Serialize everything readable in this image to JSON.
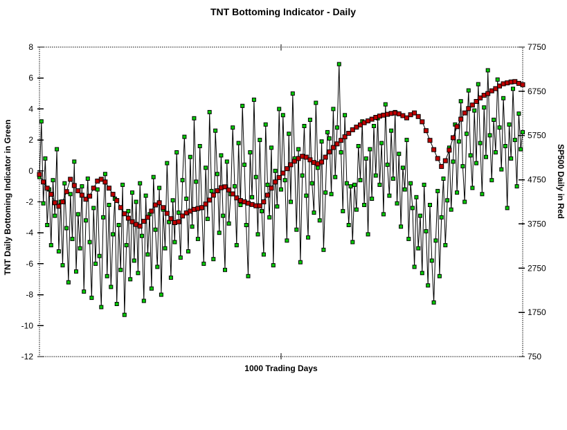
{
  "page": {
    "background": "#ffffff"
  },
  "chart_data": {
    "type": "line",
    "title": "TNT Bottoming Indicator - Daily",
    "xlabel": "1000 Trading Days",
    "grid": false,
    "frame_style": "dotted",
    "x_range": [
      0,
      1000
    ],
    "left_axis": {
      "label": "TNT Daily Bottoming Indicator in Green",
      "min": -12,
      "max": 8,
      "ticks": [
        8,
        6,
        4,
        2,
        0,
        -2,
        -4,
        -6,
        -8,
        -10,
        -12
      ],
      "tick_labels": [
        "8",
        "6",
        "4",
        "2",
        "0",
        "-2",
        "-4",
        "-6",
        "-8",
        "-10",
        "-12"
      ]
    },
    "right_axis": {
      "label": "SP500 Daily in Red",
      "min": 750,
      "max": 7750,
      "ticks": [
        7750,
        6750,
        5750,
        4750,
        3750,
        2750,
        1750,
        750
      ],
      "tick_labels": [
        "7750",
        "6750",
        "5750",
        "4750",
        "3750",
        "2750",
        "1750",
        "750"
      ]
    },
    "series": [
      {
        "name": "TNT Daily Bottoming Indicator",
        "axis": "left",
        "color": "#00cc00",
        "line_color": "#000000",
        "marker": "square",
        "marker_size": 5,
        "x_start": 0,
        "x_step": 4,
        "values": [
          -0.4,
          3.2,
          -2.1,
          0.8,
          -3.5,
          -1.2,
          -4.8,
          -0.6,
          -2.9,
          1.4,
          -5.2,
          -2.0,
          -6.1,
          -0.8,
          -3.7,
          -7.2,
          -1.5,
          -4.4,
          0.6,
          -6.5,
          -2.8,
          -5.0,
          -1.0,
          -7.8,
          -3.2,
          -0.5,
          -4.6,
          -8.2,
          -2.4,
          -6.0,
          -1.2,
          -5.5,
          -8.8,
          -3.0,
          -0.2,
          -6.8,
          -2.2,
          -7.5,
          -4.1,
          -1.8,
          -8.6,
          -3.5,
          -6.4,
          -0.9,
          -9.3,
          -4.8,
          -2.6,
          -7.0,
          -1.4,
          -5.8,
          -2.0,
          -6.6,
          -0.8,
          -4.2,
          -8.4,
          -1.6,
          -5.4,
          -2.8,
          -7.6,
          -0.4,
          -3.8,
          -6.2,
          -1.1,
          -8.0,
          -2.5,
          -5.0,
          0.5,
          -3.3,
          -6.9,
          -1.9,
          -4.6,
          1.2,
          -2.7,
          -5.6,
          -0.6,
          2.2,
          -1.8,
          -5.2,
          0.9,
          -3.6,
          3.4,
          -0.7,
          -4.4,
          1.6,
          -2.4,
          -6.0,
          0.2,
          -3.1,
          3.8,
          -1.3,
          -5.7,
          2.6,
          -0.2,
          -4.0,
          1.0,
          -2.9,
          -6.4,
          0.6,
          -3.4,
          -1.5,
          2.8,
          -1.0,
          -4.8,
          1.8,
          -2.2,
          4.2,
          0.4,
          -3.5,
          -6.8,
          1.2,
          -1.7,
          4.6,
          -0.4,
          -4.1,
          2.0,
          -2.6,
          -5.4,
          3.0,
          -0.9,
          -3.0,
          1.5,
          -6.1,
          0.0,
          -2.3,
          4.0,
          -1.2,
          3.6,
          -0.6,
          -4.5,
          2.4,
          -2.0,
          5.0,
          0.8,
          -3.8,
          1.4,
          -5.9,
          -0.3,
          2.9,
          -1.6,
          -4.3,
          3.3,
          -0.8,
          -2.7,
          4.4,
          0.2,
          -3.2,
          1.9,
          -5.1,
          -1.4,
          2.5,
          2.1,
          -1.5,
          4.0,
          -0.4,
          2.8,
          6.9,
          1.2,
          -2.6,
          3.6,
          -0.8,
          -3.5,
          -1.0,
          -4.6,
          -0.9,
          -2.5,
          1.6,
          -0.6,
          3.2,
          -2.2,
          0.8,
          -4.1,
          1.4,
          -1.8,
          2.9,
          -0.3,
          3.4,
          -0.9,
          1.8,
          -2.8,
          4.3,
          0.4,
          -1.6,
          2.6,
          -0.5,
          3.8,
          -2.1,
          1.1,
          -3.6,
          0.2,
          -1.2,
          2.0,
          -4.4,
          -0.8,
          -2.4,
          -6.2,
          -1.7,
          -5.0,
          -2.9,
          -6.6,
          -0.9,
          -3.9,
          -7.4,
          -2.2,
          -5.8,
          -8.5,
          -4.5,
          -1.3,
          -6.8,
          -3.0,
          -0.5,
          -4.8,
          -1.9,
          1.5,
          -2.5,
          0.6,
          3.0,
          -1.4,
          1.9,
          4.5,
          0.3,
          -2.0,
          2.4,
          5.2,
          1.0,
          -1.1,
          3.9,
          0.5,
          5.6,
          1.8,
          -1.5,
          4.1,
          0.9,
          6.5,
          2.3,
          -0.6,
          3.3,
          1.2,
          5.9,
          2.8,
          0.1,
          4.7,
          1.6,
          -2.4,
          3.0,
          0.8,
          5.3,
          2.0,
          -1.0,
          3.7,
          1.4,
          2.5
        ]
      },
      {
        "name": "SP500 Daily",
        "axis": "right",
        "color": "#c00000",
        "line_color": "#000000",
        "marker": "square",
        "marker_size": 6,
        "x_start": 0,
        "x_step": 8,
        "values": [
          4870,
          4700,
          4560,
          4420,
          4230,
          4150,
          4250,
          4480,
          4760,
          4620,
          4500,
          4400,
          4310,
          4380,
          4560,
          4720,
          4760,
          4700,
          4560,
          4420,
          4280,
          4120,
          3980,
          3880,
          3800,
          3740,
          3700,
          3810,
          3900,
          4040,
          4180,
          4230,
          4120,
          3990,
          3870,
          3780,
          3800,
          3930,
          4000,
          4040,
          4080,
          4100,
          4120,
          4200,
          4290,
          4400,
          4500,
          4570,
          4590,
          4520,
          4430,
          4340,
          4280,
          4250,
          4220,
          4190,
          4160,
          4160,
          4250,
          4400,
          4560,
          4700,
          4800,
          4900,
          5000,
          5090,
          5170,
          5230,
          5280,
          5260,
          5200,
          5140,
          5110,
          5150,
          5260,
          5380,
          5480,
          5560,
          5640,
          5720,
          5800,
          5880,
          5940,
          5990,
          6040,
          6080,
          6120,
          6160,
          6190,
          6210,
          6230,
          6250,
          6260,
          6240,
          6200,
          6150,
          6220,
          6260,
          6180,
          6060,
          5860,
          5640,
          5430,
          5230,
          5050,
          5180,
          5420,
          5700,
          5950,
          6120,
          6260,
          6360,
          6440,
          6520,
          6600,
          6660,
          6700,
          6760,
          6810,
          6870,
          6920,
          6940,
          6960,
          6970,
          6930,
          6900
        ]
      }
    ]
  }
}
